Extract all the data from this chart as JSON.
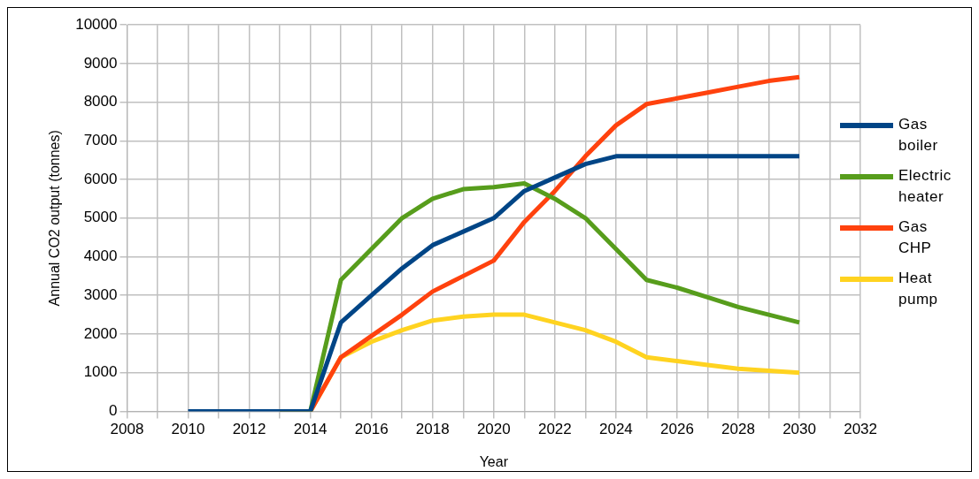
{
  "chart_data": {
    "type": "line",
    "xlabel": "Year",
    "ylabel": "Annual CO2 output (tonnes)",
    "x": [
      2010,
      2011,
      2012,
      2013,
      2014,
      2015,
      2016,
      2017,
      2018,
      2019,
      2020,
      2021,
      2022,
      2023,
      2024,
      2025,
      2026,
      2027,
      2028,
      2029,
      2030
    ],
    "series": [
      {
        "name": "Gas boiler",
        "color": "#004586",
        "values": [
          0,
          0,
          0,
          0,
          0,
          2300,
          3000,
          3700,
          4300,
          4650,
          5000,
          5700,
          6050,
          6400,
          6600,
          6600,
          6600,
          6600,
          6600,
          6600,
          6600
        ]
      },
      {
        "name": "Electric heater",
        "color": "#579d1c",
        "values": [
          null,
          null,
          null,
          0,
          0,
          3400,
          4200,
          5000,
          5500,
          5750,
          5800,
          5900,
          5500,
          5000,
          4200,
          3400,
          3200,
          2950,
          2700,
          2500,
          2300
        ]
      },
      {
        "name": "Gas CHP",
        "color": "#ff420e",
        "values": [
          null,
          null,
          null,
          0,
          0,
          1400,
          1950,
          2500,
          3100,
          3500,
          3900,
          4900,
          5700,
          6600,
          7400,
          7950,
          8100,
          8250,
          8400,
          8550,
          8650
        ]
      },
      {
        "name": "Heat pump",
        "color": "#ffd320",
        "values": [
          null,
          null,
          null,
          null,
          0,
          1400,
          1800,
          2100,
          2350,
          2450,
          2500,
          2500,
          2300,
          2100,
          1800,
          1400,
          1300,
          1200,
          1100,
          1050,
          1000
        ]
      }
    ],
    "xlim": [
      2008,
      2032
    ],
    "xticks": [
      2008,
      {
        "value": 2009,
        "label": null
      },
      2010,
      {
        "value": 2011,
        "label": null
      },
      2012,
      {
        "value": 2013,
        "label": null
      },
      2014,
      {
        "value": 2015,
        "label": null
      },
      2016,
      {
        "value": 2017,
        "label": null
      },
      2018,
      {
        "value": 2019,
        "label": null
      },
      2020,
      {
        "value": 2021,
        "label": null
      },
      2022,
      {
        "value": 2023,
        "label": null
      },
      2024,
      {
        "value": 2025,
        "label": null
      },
      2026,
      {
        "value": 2027,
        "label": null
      },
      2028,
      {
        "value": 2029,
        "label": null
      },
      2030,
      {
        "value": 2031,
        "label": null
      },
      2032
    ],
    "ylim": [
      0,
      10000
    ],
    "yticks": [
      0,
      1000,
      2000,
      3000,
      4000,
      5000,
      6000,
      7000,
      8000,
      9000,
      10000
    ],
    "grid": true,
    "legend": "right",
    "marker": "none",
    "line_style": "solid"
  }
}
